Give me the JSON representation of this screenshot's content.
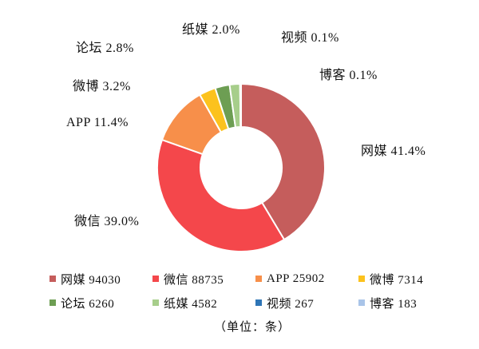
{
  "chart_data": {
    "type": "pie",
    "subtype": "donut",
    "title": "",
    "unit_note": "（单位：条）",
    "start_angle_deg": 0,
    "direction": "clockwise",
    "legend_position": "bottom",
    "slices": [
      {
        "name": "网媒",
        "value": 94030,
        "pct": 41.4,
        "callout": "网媒 41.4%",
        "legend_label": "网媒 94030",
        "color": "#C55D5C"
      },
      {
        "name": "微信",
        "value": 88735,
        "pct": 39.0,
        "callout": "微信 39.0%",
        "legend_label": "微信 88735",
        "color": "#F4474B"
      },
      {
        "name": "APP",
        "value": 25902,
        "pct": 11.4,
        "callout": "APP 11.4%",
        "legend_label": "APP 25902",
        "color": "#F78F4A"
      },
      {
        "name": "微博",
        "value": 7314,
        "pct": 3.2,
        "callout": "微博 3.2%",
        "legend_label": "微博 7314",
        "color": "#FCC21D"
      },
      {
        "name": "论坛",
        "value": 6260,
        "pct": 2.8,
        "callout": "论坛 2.8%",
        "legend_label": "论坛 6260",
        "color": "#6D9E53"
      },
      {
        "name": "纸媒",
        "value": 4582,
        "pct": 2.0,
        "callout": "纸媒 2.0%",
        "legend_label": "纸媒 4582",
        "color": "#A7CE8B"
      },
      {
        "name": "视频",
        "value": 267,
        "pct": 0.1,
        "callout": "视频 0.1%",
        "legend_label": "视频 267",
        "color": "#2E75B6"
      },
      {
        "name": "博客",
        "value": 183,
        "pct": 0.1,
        "callout": "博客 0.1%",
        "legend_label": "博客 183",
        "color": "#A9C4E8"
      }
    ]
  }
}
